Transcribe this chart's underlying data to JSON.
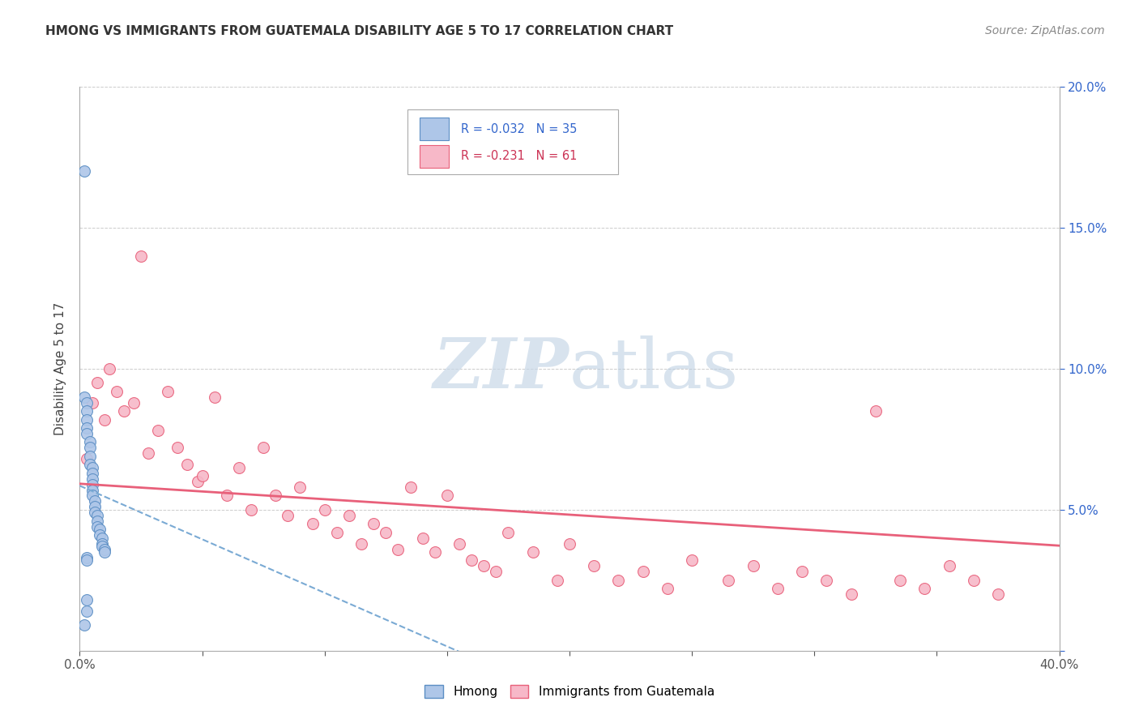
{
  "title": "HMONG VS IMMIGRANTS FROM GUATEMALA DISABILITY AGE 5 TO 17 CORRELATION CHART",
  "source": "Source: ZipAtlas.com",
  "ylabel": "Disability Age 5 to 17",
  "xlim": [
    0.0,
    0.4
  ],
  "ylim": [
    0.0,
    0.2
  ],
  "hmong_color": "#aec6e8",
  "hmong_edge_color": "#5b8ec4",
  "guatemala_color": "#f7b8c8",
  "guatemala_edge_color": "#e8607a",
  "hmong_line_color": "#7aaad4",
  "guatemala_line_color": "#e8607a",
  "R_hmong": -0.032,
  "N_hmong": 35,
  "R_guatemala": -0.231,
  "N_guatemala": 61,
  "watermark_zip": "ZIP",
  "watermark_atlas": "atlas",
  "hmong_x": [
    0.002,
    0.002,
    0.003,
    0.003,
    0.003,
    0.003,
    0.003,
    0.004,
    0.004,
    0.004,
    0.004,
    0.005,
    0.005,
    0.005,
    0.005,
    0.005,
    0.005,
    0.006,
    0.006,
    0.006,
    0.007,
    0.007,
    0.007,
    0.008,
    0.008,
    0.009,
    0.009,
    0.009,
    0.01,
    0.01,
    0.003,
    0.003,
    0.003,
    0.003,
    0.002
  ],
  "hmong_y": [
    0.17,
    0.09,
    0.088,
    0.085,
    0.082,
    0.079,
    0.077,
    0.074,
    0.072,
    0.069,
    0.066,
    0.065,
    0.063,
    0.061,
    0.059,
    0.057,
    0.055,
    0.053,
    0.051,
    0.049,
    0.048,
    0.046,
    0.044,
    0.043,
    0.041,
    0.04,
    0.038,
    0.037,
    0.036,
    0.035,
    0.033,
    0.032,
    0.018,
    0.014,
    0.009
  ],
  "guatemala_x": [
    0.003,
    0.005,
    0.007,
    0.01,
    0.012,
    0.015,
    0.018,
    0.022,
    0.025,
    0.028,
    0.032,
    0.036,
    0.04,
    0.044,
    0.048,
    0.05,
    0.055,
    0.06,
    0.065,
    0.07,
    0.075,
    0.08,
    0.085,
    0.09,
    0.095,
    0.1,
    0.105,
    0.11,
    0.115,
    0.12,
    0.125,
    0.13,
    0.135,
    0.14,
    0.145,
    0.15,
    0.155,
    0.16,
    0.165,
    0.17,
    0.175,
    0.185,
    0.195,
    0.2,
    0.21,
    0.22,
    0.23,
    0.24,
    0.25,
    0.265,
    0.275,
    0.285,
    0.295,
    0.305,
    0.315,
    0.325,
    0.335,
    0.345,
    0.355,
    0.365,
    0.375
  ],
  "guatemala_y": [
    0.068,
    0.088,
    0.095,
    0.082,
    0.1,
    0.092,
    0.085,
    0.088,
    0.14,
    0.07,
    0.078,
    0.092,
    0.072,
    0.066,
    0.06,
    0.062,
    0.09,
    0.055,
    0.065,
    0.05,
    0.072,
    0.055,
    0.048,
    0.058,
    0.045,
    0.05,
    0.042,
    0.048,
    0.038,
    0.045,
    0.042,
    0.036,
    0.058,
    0.04,
    0.035,
    0.055,
    0.038,
    0.032,
    0.03,
    0.028,
    0.042,
    0.035,
    0.025,
    0.038,
    0.03,
    0.025,
    0.028,
    0.022,
    0.032,
    0.025,
    0.03,
    0.022,
    0.028,
    0.025,
    0.02,
    0.085,
    0.025,
    0.022,
    0.03,
    0.025,
    0.02
  ]
}
